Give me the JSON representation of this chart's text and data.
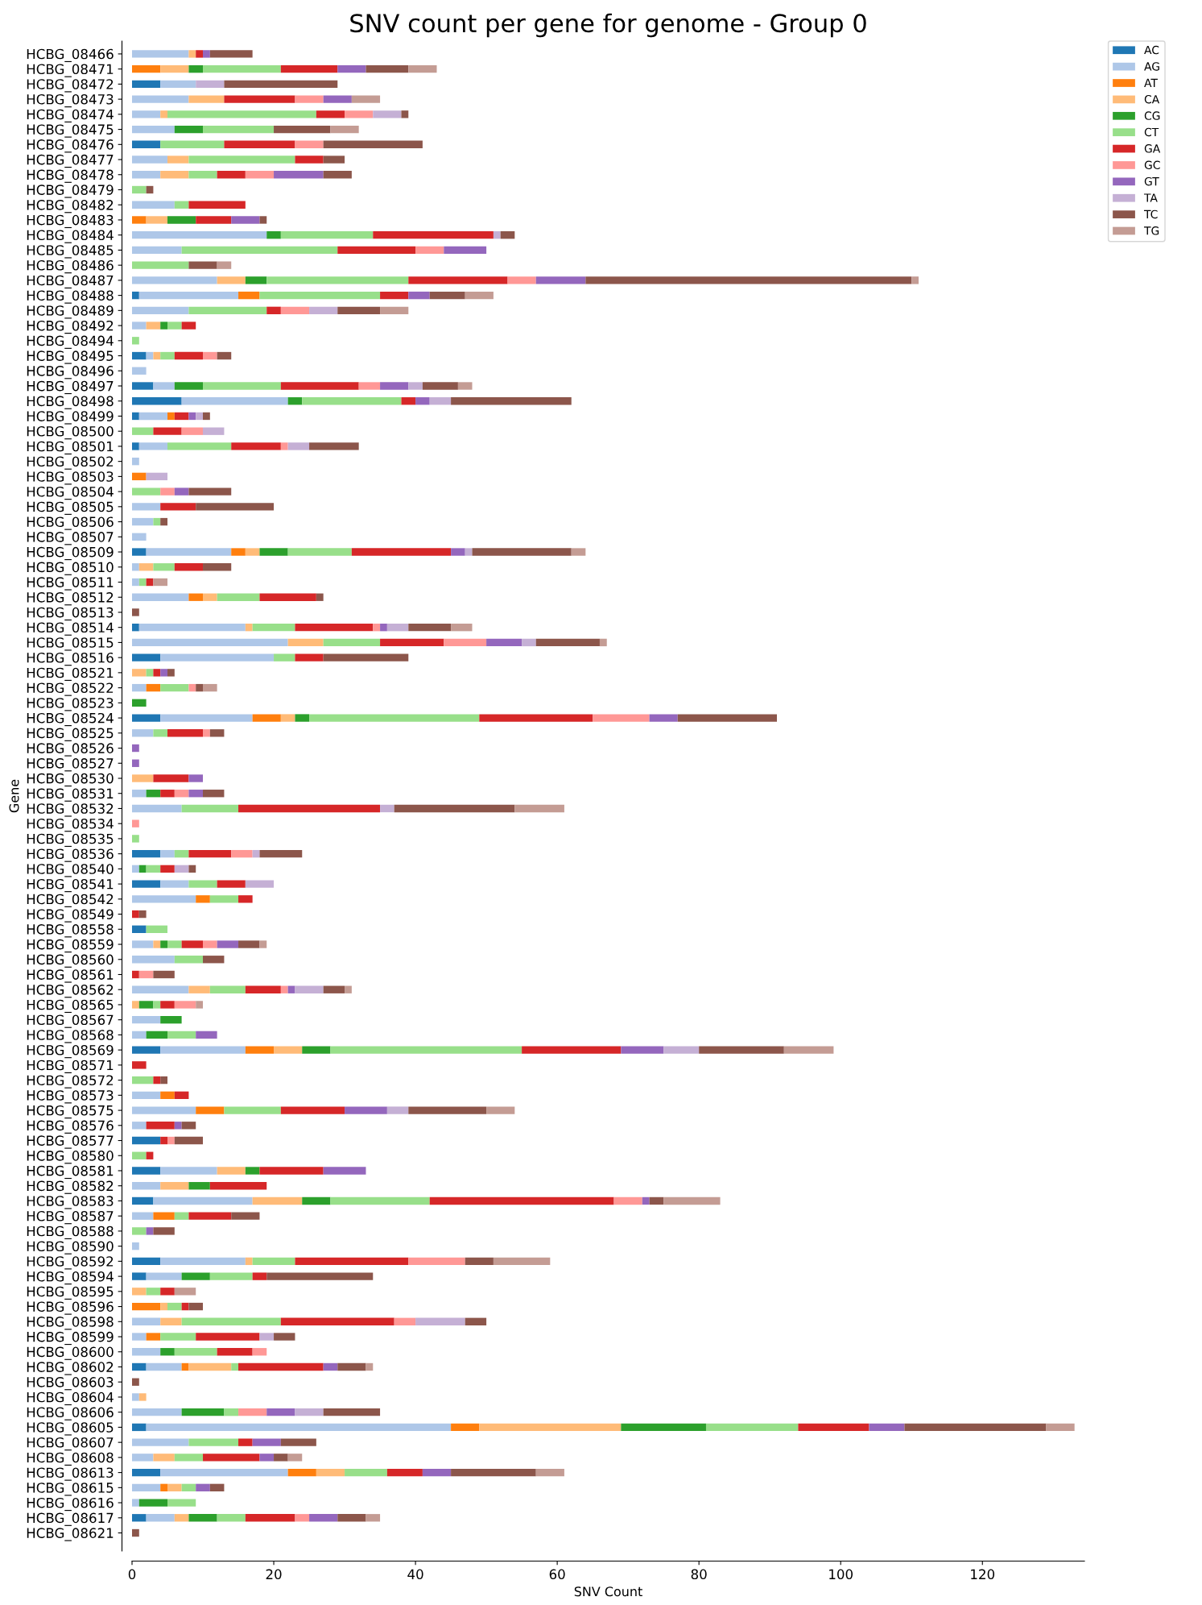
{
  "chart_data": {
    "type": "bar",
    "orientation": "horizontal",
    "stacked": true,
    "title": "SNV count per gene for genome - Group 0",
    "xlabel": "SNV Count",
    "ylabel": "Gene",
    "categories": [
      "HCBG_08466",
      "HCBG_08471",
      "HCBG_08472",
      "HCBG_08473",
      "HCBG_08474",
      "HCBG_08475",
      "HCBG_08476",
      "HCBG_08477",
      "HCBG_08478",
      "HCBG_08479",
      "HCBG_08482",
      "HCBG_08483",
      "HCBG_08484",
      "HCBG_08485",
      "HCBG_08486",
      "HCBG_08487",
      "HCBG_08488",
      "HCBG_08489",
      "HCBG_08492",
      "HCBG_08494",
      "HCBG_08495",
      "HCBG_08496",
      "HCBG_08497",
      "HCBG_08498",
      "HCBG_08499",
      "HCBG_08500",
      "HCBG_08501",
      "HCBG_08502",
      "HCBG_08503",
      "HCBG_08504",
      "HCBG_08505",
      "HCBG_08506",
      "HCBG_08507",
      "HCBG_08509",
      "HCBG_08510",
      "HCBG_08511",
      "HCBG_08512",
      "HCBG_08513",
      "HCBG_08514",
      "HCBG_08515",
      "HCBG_08516",
      "HCBG_08521",
      "HCBG_08522",
      "HCBG_08523",
      "HCBG_08524",
      "HCBG_08525",
      "HCBG_08526",
      "HCBG_08527",
      "HCBG_08530",
      "HCBG_08531",
      "HCBG_08532",
      "HCBG_08534",
      "HCBG_08535",
      "HCBG_08536",
      "HCBG_08540",
      "HCBG_08541",
      "HCBG_08542",
      "HCBG_08549",
      "HCBG_08558",
      "HCBG_08559",
      "HCBG_08560",
      "HCBG_08561",
      "HCBG_08562",
      "HCBG_08565",
      "HCBG_08567",
      "HCBG_08568",
      "HCBG_08569",
      "HCBG_08571",
      "HCBG_08572",
      "HCBG_08573",
      "HCBG_08575",
      "HCBG_08576",
      "HCBG_08577",
      "HCBG_08580",
      "HCBG_08581",
      "HCBG_08582",
      "HCBG_08583",
      "HCBG_08587",
      "HCBG_08588",
      "HCBG_08590",
      "HCBG_08592",
      "HCBG_08594",
      "HCBG_08595",
      "HCBG_08596",
      "HCBG_08598",
      "HCBG_08599",
      "HCBG_08600",
      "HCBG_08602",
      "HCBG_08603",
      "HCBG_08604",
      "HCBG_08606",
      "HCBG_08605",
      "HCBG_08607",
      "HCBG_08608",
      "HCBG_08613",
      "HCBG_08615",
      "HCBG_08616",
      "HCBG_08617",
      "HCBG_08621"
    ],
    "series": [
      {
        "name": "AC",
        "color": "#1f77b4",
        "values": [
          null,
          null,
          4,
          null,
          null,
          null,
          4,
          null,
          null,
          null,
          null,
          null,
          null,
          null,
          null,
          null,
          1,
          null,
          null,
          null,
          2,
          null,
          3,
          7,
          1,
          null,
          1,
          null,
          null,
          null,
          null,
          null,
          null,
          2,
          null,
          null,
          null,
          null,
          1,
          null,
          4,
          null,
          null,
          null,
          4,
          null,
          null,
          null,
          null,
          null,
          null,
          null,
          null,
          4,
          null,
          4,
          null,
          null,
          2,
          null,
          null,
          null,
          null,
          null,
          null,
          null,
          4,
          null,
          null,
          null,
          null,
          null,
          4,
          null,
          4,
          null,
          3,
          null,
          null,
          null,
          4,
          2,
          null,
          null,
          null,
          null,
          null,
          2,
          null,
          null,
          null,
          2,
          null,
          null,
          4,
          null,
          null,
          2,
          null
        ]
      },
      {
        "name": "AG",
        "color": "#aec7e8",
        "values": [
          8,
          null,
          5,
          8,
          4,
          6,
          null,
          5,
          4,
          null,
          6,
          null,
          19,
          7,
          null,
          12,
          14,
          8,
          2,
          null,
          1,
          2,
          3,
          15,
          4,
          null,
          4,
          1,
          null,
          null,
          4,
          3,
          2,
          12,
          1,
          1,
          8,
          null,
          15,
          22,
          16,
          null,
          2,
          null,
          13,
          3,
          null,
          null,
          null,
          2,
          7,
          null,
          null,
          2,
          1,
          4,
          9,
          null,
          null,
          3,
          6,
          null,
          8,
          null,
          4,
          2,
          12,
          null,
          null,
          4,
          9,
          2,
          null,
          null,
          8,
          4,
          14,
          3,
          null,
          1,
          12,
          5,
          null,
          null,
          4,
          2,
          4,
          5,
          null,
          1,
          7,
          43,
          8,
          3,
          18,
          4,
          1,
          4,
          null
        ]
      },
      {
        "name": "AT",
        "color": "#ff7f0e",
        "values": [
          null,
          4,
          null,
          null,
          null,
          null,
          null,
          null,
          null,
          null,
          null,
          2,
          null,
          null,
          null,
          null,
          3,
          null,
          null,
          null,
          null,
          null,
          null,
          null,
          1,
          null,
          null,
          null,
          2,
          null,
          null,
          null,
          null,
          2,
          null,
          null,
          2,
          null,
          null,
          null,
          null,
          null,
          2,
          null,
          4,
          null,
          null,
          null,
          null,
          null,
          null,
          null,
          null,
          null,
          null,
          null,
          2,
          null,
          null,
          null,
          null,
          null,
          null,
          null,
          null,
          null,
          4,
          null,
          null,
          2,
          4,
          null,
          null,
          null,
          null,
          null,
          null,
          3,
          null,
          null,
          null,
          null,
          null,
          4,
          null,
          2,
          null,
          1,
          null,
          null,
          null,
          4,
          null,
          null,
          4,
          1,
          null,
          null,
          null
        ]
      },
      {
        "name": "CA",
        "color": "#ffbb78",
        "values": [
          1,
          4,
          null,
          5,
          1,
          null,
          null,
          3,
          4,
          null,
          null,
          3,
          null,
          null,
          null,
          4,
          null,
          null,
          2,
          null,
          1,
          null,
          null,
          null,
          null,
          null,
          null,
          null,
          null,
          null,
          null,
          null,
          null,
          2,
          2,
          null,
          2,
          null,
          1,
          5,
          null,
          2,
          null,
          null,
          2,
          null,
          null,
          null,
          3,
          null,
          null,
          null,
          null,
          null,
          null,
          null,
          null,
          null,
          null,
          1,
          null,
          null,
          3,
          1,
          null,
          null,
          4,
          null,
          null,
          null,
          null,
          null,
          null,
          null,
          4,
          4,
          7,
          null,
          null,
          null,
          1,
          null,
          2,
          1,
          3,
          null,
          null,
          6,
          null,
          1,
          null,
          20,
          null,
          3,
          4,
          2,
          null,
          2,
          null
        ]
      },
      {
        "name": "CG",
        "color": "#2ca02c",
        "values": [
          null,
          2,
          null,
          null,
          null,
          4,
          null,
          null,
          null,
          null,
          null,
          4,
          2,
          null,
          null,
          3,
          null,
          null,
          1,
          null,
          null,
          null,
          4,
          2,
          null,
          null,
          null,
          null,
          null,
          null,
          null,
          null,
          null,
          4,
          null,
          null,
          null,
          null,
          null,
          null,
          null,
          null,
          null,
          2,
          2,
          null,
          null,
          null,
          null,
          2,
          null,
          null,
          null,
          null,
          1,
          null,
          null,
          null,
          null,
          1,
          null,
          null,
          null,
          2,
          3,
          3,
          4,
          null,
          null,
          null,
          null,
          null,
          null,
          null,
          2,
          3,
          4,
          null,
          null,
          null,
          null,
          4,
          null,
          null,
          null,
          null,
          2,
          null,
          null,
          null,
          6,
          12,
          null,
          null,
          null,
          null,
          4,
          4,
          null
        ]
      },
      {
        "name": "CT",
        "color": "#98df8a",
        "values": [
          null,
          11,
          null,
          null,
          21,
          10,
          9,
          15,
          4,
          2,
          2,
          null,
          13,
          22,
          8,
          20,
          17,
          11,
          2,
          1,
          2,
          null,
          11,
          14,
          null,
          3,
          9,
          null,
          null,
          4,
          null,
          1,
          null,
          9,
          3,
          1,
          6,
          null,
          6,
          8,
          3,
          1,
          4,
          null,
          24,
          2,
          null,
          null,
          null,
          null,
          8,
          null,
          1,
          2,
          2,
          4,
          4,
          null,
          3,
          2,
          4,
          null,
          5,
          1,
          null,
          4,
          27,
          null,
          3,
          null,
          8,
          null,
          null,
          2,
          null,
          null,
          14,
          2,
          2,
          null,
          6,
          6,
          2,
          2,
          14,
          5,
          6,
          1,
          null,
          null,
          2,
          13,
          7,
          4,
          6,
          2,
          4,
          4,
          null
        ]
      },
      {
        "name": "GA",
        "color": "#d62728",
        "values": [
          1,
          8,
          null,
          10,
          4,
          null,
          10,
          4,
          4,
          null,
          8,
          5,
          17,
          11,
          null,
          14,
          4,
          2,
          2,
          null,
          4,
          null,
          11,
          2,
          2,
          4,
          7,
          null,
          null,
          null,
          5,
          null,
          null,
          14,
          4,
          1,
          8,
          null,
          11,
          9,
          4,
          1,
          null,
          null,
          16,
          5,
          null,
          null,
          5,
          2,
          20,
          null,
          null,
          6,
          2,
          4,
          2,
          1,
          null,
          3,
          null,
          1,
          5,
          2,
          null,
          null,
          14,
          2,
          1,
          2,
          9,
          4,
          1,
          1,
          9,
          8,
          26,
          6,
          null,
          null,
          16,
          2,
          2,
          1,
          16,
          9,
          5,
          12,
          null,
          null,
          null,
          10,
          2,
          8,
          5,
          null,
          null,
          7,
          null
        ]
      },
      {
        "name": "GC",
        "color": "#ff9896",
        "values": [
          null,
          null,
          null,
          4,
          4,
          null,
          4,
          null,
          4,
          null,
          null,
          null,
          null,
          4,
          null,
          4,
          null,
          4,
          null,
          null,
          2,
          null,
          3,
          null,
          null,
          3,
          1,
          null,
          null,
          2,
          null,
          null,
          null,
          null,
          null,
          null,
          null,
          null,
          1,
          6,
          null,
          null,
          1,
          null,
          8,
          1,
          null,
          null,
          null,
          2,
          null,
          1,
          null,
          3,
          null,
          null,
          null,
          null,
          null,
          2,
          null,
          2,
          1,
          3,
          null,
          null,
          null,
          null,
          null,
          null,
          null,
          null,
          1,
          null,
          null,
          null,
          4,
          null,
          null,
          null,
          8,
          null,
          null,
          null,
          3,
          null,
          2,
          null,
          null,
          null,
          4,
          null,
          null,
          null,
          null,
          null,
          null,
          2,
          null
        ]
      },
      {
        "name": "GT",
        "color": "#9467bd",
        "values": [
          1,
          4,
          null,
          4,
          null,
          null,
          null,
          null,
          7,
          null,
          null,
          4,
          null,
          6,
          null,
          7,
          3,
          null,
          null,
          null,
          null,
          null,
          4,
          2,
          1,
          null,
          null,
          null,
          null,
          2,
          null,
          null,
          null,
          2,
          null,
          null,
          null,
          null,
          1,
          5,
          null,
          1,
          null,
          null,
          4,
          null,
          1,
          1,
          2,
          2,
          null,
          null,
          null,
          null,
          null,
          null,
          null,
          null,
          null,
          3,
          null,
          null,
          1,
          null,
          null,
          3,
          6,
          null,
          null,
          null,
          6,
          1,
          null,
          null,
          6,
          null,
          1,
          null,
          1,
          null,
          null,
          null,
          null,
          null,
          null,
          null,
          null,
          2,
          null,
          null,
          4,
          5,
          4,
          2,
          4,
          2,
          null,
          4,
          null
        ]
      },
      {
        "name": "TA",
        "color": "#c5b0d5",
        "values": [
          null,
          null,
          4,
          null,
          4,
          null,
          null,
          null,
          null,
          null,
          null,
          null,
          1,
          null,
          null,
          null,
          null,
          4,
          null,
          null,
          null,
          null,
          2,
          3,
          1,
          3,
          3,
          null,
          3,
          null,
          null,
          null,
          null,
          1,
          null,
          null,
          null,
          null,
          3,
          2,
          null,
          null,
          null,
          null,
          null,
          null,
          null,
          null,
          null,
          null,
          2,
          null,
          null,
          1,
          2,
          4,
          null,
          null,
          null,
          null,
          null,
          null,
          4,
          null,
          null,
          null,
          5,
          null,
          null,
          null,
          3,
          null,
          null,
          null,
          null,
          null,
          null,
          null,
          null,
          null,
          null,
          null,
          null,
          null,
          7,
          2,
          null,
          null,
          null,
          null,
          4,
          null,
          null,
          null,
          null,
          null,
          null,
          null,
          null
        ]
      },
      {
        "name": "TC",
        "color": "#8c564b",
        "values": [
          6,
          6,
          16,
          null,
          1,
          8,
          14,
          3,
          4,
          1,
          null,
          1,
          2,
          null,
          4,
          46,
          5,
          6,
          null,
          null,
          2,
          null,
          5,
          17,
          1,
          null,
          7,
          null,
          null,
          6,
          11,
          1,
          null,
          14,
          4,
          null,
          1,
          1,
          6,
          9,
          12,
          1,
          1,
          null,
          14,
          2,
          null,
          null,
          null,
          3,
          17,
          null,
          null,
          6,
          1,
          null,
          null,
          1,
          null,
          3,
          3,
          3,
          3,
          null,
          null,
          null,
          12,
          null,
          1,
          null,
          11,
          2,
          4,
          null,
          null,
          null,
          2,
          4,
          3,
          null,
          4,
          15,
          null,
          2,
          3,
          3,
          null,
          4,
          1,
          null,
          8,
          20,
          5,
          2,
          12,
          2,
          null,
          4,
          1
        ]
      },
      {
        "name": "TG",
        "color": "#c49c94",
        "values": [
          null,
          4,
          null,
          4,
          null,
          4,
          null,
          null,
          null,
          null,
          null,
          null,
          null,
          null,
          2,
          1,
          4,
          4,
          null,
          null,
          null,
          null,
          2,
          null,
          null,
          null,
          null,
          null,
          null,
          null,
          null,
          null,
          null,
          2,
          null,
          2,
          null,
          null,
          3,
          1,
          null,
          null,
          2,
          null,
          null,
          null,
          null,
          null,
          null,
          null,
          7,
          null,
          null,
          null,
          null,
          null,
          null,
          null,
          null,
          1,
          null,
          null,
          1,
          1,
          null,
          null,
          7,
          null,
          null,
          null,
          4,
          null,
          null,
          null,
          null,
          null,
          8,
          null,
          null,
          null,
          8,
          null,
          3,
          null,
          null,
          null,
          null,
          1,
          null,
          null,
          null,
          4,
          null,
          2,
          4,
          null,
          null,
          2,
          null
        ]
      }
    ],
    "xlim": [
      0,
      134.4
    ],
    "xticks": [
      0,
      20,
      40,
      60,
      80,
      100,
      120
    ],
    "legend": "top right"
  }
}
